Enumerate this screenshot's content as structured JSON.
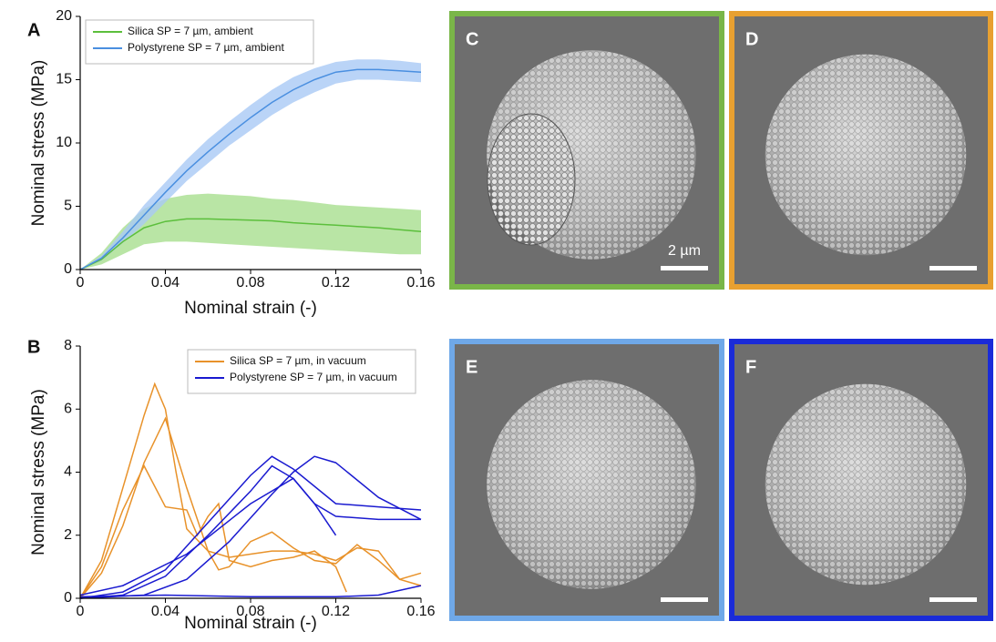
{
  "chart_data": [
    {
      "type": "line",
      "panel_label": "A",
      "x_label": "Nominal strain (-)",
      "y_label": "Nominal stress (MPa)",
      "xlim": [
        0,
        0.16
      ],
      "xticks": [
        0,
        0.04,
        0.08,
        0.12,
        0.16
      ],
      "ylim": [
        0,
        20
      ],
      "yticks": [
        0,
        5,
        10,
        15,
        20
      ],
      "legend": "upper left",
      "x": [
        0,
        0.01,
        0.02,
        0.03,
        0.04,
        0.05,
        0.06,
        0.07,
        0.08,
        0.09,
        0.1,
        0.11,
        0.12,
        0.13,
        0.14,
        0.15,
        0.16
      ],
      "series": [
        {
          "name": "Silica SP = 7 µm, ambient",
          "color": "#5cbf3c",
          "band_color": "#a8de8e",
          "values": [
            0,
            0.8,
            2.2,
            3.3,
            3.8,
            4.0,
            4.0,
            3.95,
            3.9,
            3.85,
            3.7,
            3.6,
            3.5,
            3.4,
            3.3,
            3.15,
            3.0
          ],
          "upper": [
            0,
            1.3,
            3.3,
            4.8,
            5.6,
            5.9,
            6.0,
            5.9,
            5.8,
            5.6,
            5.5,
            5.3,
            5.1,
            5.0,
            4.9,
            4.8,
            4.7
          ],
          "lower": [
            0,
            0.4,
            1.2,
            2.0,
            2.2,
            2.2,
            2.1,
            2.0,
            1.9,
            1.8,
            1.7,
            1.6,
            1.5,
            1.4,
            1.3,
            1.2,
            1.2
          ]
        },
        {
          "name": "Polystyrene SP = 7 µm, ambient",
          "color": "#4a8fe0",
          "band_color": "#a9c9f5",
          "values": [
            0,
            0.9,
            2.5,
            4.3,
            6.1,
            7.8,
            9.3,
            10.7,
            12.0,
            13.2,
            14.2,
            15.0,
            15.6,
            15.8,
            15.8,
            15.7,
            15.6
          ],
          "upper": [
            0,
            1.1,
            3.0,
            5.1,
            6.9,
            8.7,
            10.3,
            11.7,
            13.0,
            14.2,
            15.2,
            15.9,
            16.4,
            16.6,
            16.6,
            16.5,
            16.3
          ],
          "lower": [
            0,
            0.7,
            2.1,
            3.6,
            5.3,
            7.0,
            8.4,
            9.8,
            11.0,
            12.2,
            13.2,
            14.0,
            14.7,
            15.0,
            15.0,
            14.9,
            14.8
          ]
        }
      ]
    },
    {
      "type": "multiline",
      "panel_label": "B",
      "x_label": "Nominal strain (-)",
      "y_label": "Nominal stress (MPa)",
      "xlim": [
        0,
        0.16
      ],
      "xticks": [
        0,
        0.04,
        0.08,
        0.12,
        0.16
      ],
      "ylim": [
        0,
        8
      ],
      "yticks": [
        0,
        2,
        4,
        6,
        8
      ],
      "legend": "upper right",
      "series": [
        {
          "name": "Silica SP = 7 µm, in vacuum",
          "color": "#e8922a",
          "curves": [
            {
              "x": [
                0,
                0.01,
                0.02,
                0.03,
                0.035,
                0.04,
                0.045,
                0.05,
                0.06,
                0.07,
                0.08,
                0.09,
                0.1,
                0.11,
                0.12,
                0.13,
                0.14,
                0.15,
                0.16
              ],
              "values": [
                0,
                1.2,
                3.5,
                5.8,
                6.8,
                6.0,
                4.0,
                2.2,
                1.5,
                1.3,
                1.4,
                1.5,
                1.5,
                1.4,
                1.2,
                1.6,
                1.5,
                0.6,
                0.4
              ]
            },
            {
              "x": [
                0,
                0.01,
                0.02,
                0.03,
                0.04,
                0.05,
                0.06,
                0.065,
                0.07,
                0.08,
                0.09,
                0.1,
                0.11,
                0.12,
                0.13,
                0.14,
                0.15,
                0.16
              ],
              "values": [
                0,
                0.8,
                2.3,
                4.3,
                5.7,
                3.5,
                1.5,
                0.9,
                1.0,
                1.8,
                2.1,
                1.6,
                1.2,
                1.1,
                1.7,
                1.2,
                0.6,
                0.8
              ]
            },
            {
              "x": [
                0,
                0.01,
                0.02,
                0.03,
                0.04,
                0.05,
                0.055,
                0.06,
                0.065,
                0.07,
                0.08,
                0.09,
                0.1,
                0.11,
                0.12,
                0.125
              ],
              "values": [
                0,
                1.0,
                2.8,
                4.2,
                2.9,
                2.8,
                2.0,
                2.6,
                3.0,
                1.2,
                1.0,
                1.2,
                1.3,
                1.5,
                1.0,
                0.2
              ]
            }
          ]
        },
        {
          "name": "Polystyrene SP = 7 µm, in vacuum",
          "color": "#1a1ad0",
          "curves": [
            {
              "x": [
                0,
                0.02,
                0.04,
                0.06,
                0.08,
                0.09,
                0.1,
                0.12,
                0.14,
                0.16
              ],
              "values": [
                0,
                0.2,
                0.9,
                2.4,
                3.9,
                4.5,
                4.1,
                3.0,
                2.9,
                2.8
              ]
            },
            {
              "x": [
                0,
                0.02,
                0.04,
                0.06,
                0.08,
                0.09,
                0.1,
                0.11,
                0.12,
                0.14,
                0.16
              ],
              "values": [
                0,
                0.1,
                0.7,
                2.0,
                3.4,
                4.2,
                3.8,
                3.0,
                2.6,
                2.5,
                2.5
              ]
            },
            {
              "x": [
                0,
                0.03,
                0.05,
                0.07,
                0.09,
                0.1,
                0.11,
                0.12,
                0.14,
                0.16
              ],
              "values": [
                0,
                0.1,
                0.6,
                1.8,
                3.3,
                4.0,
                4.5,
                4.3,
                3.2,
                2.5
              ]
            },
            {
              "x": [
                0,
                0.02,
                0.05,
                0.08,
                0.1,
                0.11,
                0.12
              ],
              "values": [
                0.1,
                0.4,
                1.4,
                3.0,
                3.8,
                3.0,
                2.0
              ]
            },
            {
              "x": [
                0,
                0.04,
                0.08,
                0.12,
                0.14,
                0.16
              ],
              "values": [
                0.05,
                0.1,
                0.05,
                0.05,
                0.1,
                0.4
              ]
            }
          ]
        }
      ]
    }
  ],
  "images": [
    {
      "label": "C",
      "border": "#7ab648",
      "scale_label": "2 µm"
    },
    {
      "label": "D",
      "border": "#e8a030"
    },
    {
      "label": "E",
      "border": "#6fa8e8"
    },
    {
      "label": "F",
      "border": "#1a2bd8"
    }
  ]
}
